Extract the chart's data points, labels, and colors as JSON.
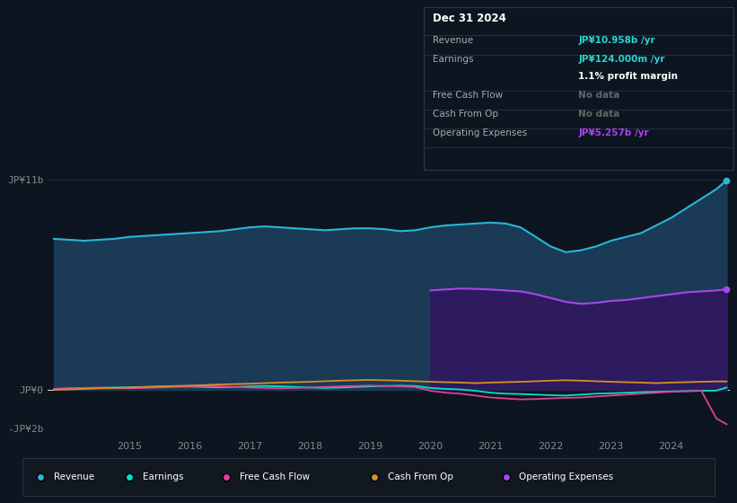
{
  "background_color": "#0d1520",
  "plot_bg_color": "#0d1520",
  "x_years": [
    2013.75,
    2014.0,
    2014.25,
    2014.5,
    2014.75,
    2015.0,
    2015.25,
    2015.5,
    2015.75,
    2016.0,
    2016.25,
    2016.5,
    2016.75,
    2017.0,
    2017.25,
    2017.5,
    2017.75,
    2018.0,
    2018.25,
    2018.5,
    2018.75,
    2019.0,
    2019.25,
    2019.5,
    2019.75,
    2020.0,
    2020.25,
    2020.5,
    2020.75,
    2021.0,
    2021.25,
    2021.5,
    2021.75,
    2022.0,
    2022.25,
    2022.5,
    2022.75,
    2023.0,
    2023.25,
    2023.5,
    2023.75,
    2024.0,
    2024.25,
    2024.5,
    2024.75,
    2024.92
  ],
  "revenue": [
    7.9,
    7.85,
    7.8,
    7.85,
    7.9,
    8.0,
    8.05,
    8.1,
    8.15,
    8.2,
    8.25,
    8.3,
    8.4,
    8.5,
    8.55,
    8.5,
    8.45,
    8.4,
    8.35,
    8.4,
    8.45,
    8.45,
    8.4,
    8.3,
    8.35,
    8.5,
    8.6,
    8.65,
    8.7,
    8.75,
    8.7,
    8.5,
    8.0,
    7.5,
    7.2,
    7.3,
    7.5,
    7.8,
    8.0,
    8.2,
    8.6,
    9.0,
    9.5,
    10.0,
    10.5,
    10.958
  ],
  "earnings": [
    0.05,
    0.07,
    0.08,
    0.1,
    0.12,
    0.13,
    0.15,
    0.17,
    0.18,
    0.17,
    0.15,
    0.13,
    0.15,
    0.18,
    0.2,
    0.18,
    0.15,
    0.12,
    0.1,
    0.12,
    0.15,
    0.18,
    0.2,
    0.22,
    0.2,
    0.1,
    0.05,
    0.02,
    -0.05,
    -0.15,
    -0.2,
    -0.22,
    -0.25,
    -0.28,
    -0.3,
    -0.25,
    -0.2,
    -0.18,
    -0.15,
    -0.12,
    -0.1,
    -0.08,
    -0.06,
    -0.05,
    -0.04,
    0.124
  ],
  "free_cash_flow": [
    0.05,
    0.08,
    0.1,
    0.12,
    0.1,
    0.08,
    0.1,
    0.12,
    0.15,
    0.18,
    0.2,
    0.18,
    0.15,
    0.12,
    0.1,
    0.08,
    0.1,
    0.12,
    0.15,
    0.18,
    0.2,
    0.22,
    0.2,
    0.18,
    0.15,
    -0.05,
    -0.15,
    -0.2,
    -0.3,
    -0.4,
    -0.45,
    -0.5,
    -0.48,
    -0.45,
    -0.42,
    -0.4,
    -0.35,
    -0.3,
    -0.25,
    -0.2,
    -0.15,
    -0.1,
    -0.08,
    -0.05,
    -1.5,
    -1.8
  ],
  "cash_from_op": [
    0.0,
    0.02,
    0.05,
    0.08,
    0.1,
    0.12,
    0.15,
    0.18,
    0.2,
    0.22,
    0.25,
    0.28,
    0.3,
    0.32,
    0.35,
    0.38,
    0.4,
    0.42,
    0.45,
    0.48,
    0.5,
    0.52,
    0.5,
    0.48,
    0.45,
    0.42,
    0.4,
    0.38,
    0.35,
    0.38,
    0.4,
    0.42,
    0.45,
    0.48,
    0.5,
    0.48,
    0.45,
    0.42,
    0.4,
    0.38,
    0.35,
    0.38,
    0.4,
    0.42,
    0.44,
    0.44
  ],
  "op_expenses_x": [
    2020.0,
    2020.25,
    2020.5,
    2020.75,
    2021.0,
    2021.25,
    2021.5,
    2021.75,
    2022.0,
    2022.25,
    2022.5,
    2022.75,
    2023.0,
    2023.25,
    2023.5,
    2023.75,
    2024.0,
    2024.25,
    2024.5,
    2024.75,
    2024.92
  ],
  "op_expenses": [
    5.2,
    5.25,
    5.3,
    5.28,
    5.25,
    5.2,
    5.15,
    5.0,
    4.8,
    4.6,
    4.5,
    4.55,
    4.65,
    4.7,
    4.8,
    4.9,
    5.0,
    5.1,
    5.15,
    5.2,
    5.257
  ],
  "ylim": [
    -2.5,
    12.5
  ],
  "revenue_color": "#29b6d8",
  "revenue_fill": "#1a3a55",
  "earnings_color": "#00e5c0",
  "free_cash_flow_color": "#e0409a",
  "cash_from_op_color": "#d4902a",
  "op_expenses_color": "#aa44ee",
  "op_expenses_fill": "#2e1a5e",
  "x_tick_positions": [
    2015,
    2016,
    2017,
    2018,
    2019,
    2020,
    2021,
    2022,
    2023,
    2024
  ],
  "x_tick_labels": [
    "2015",
    "2016",
    "2017",
    "2018",
    "2019",
    "2020",
    "2021",
    "2022",
    "2023",
    "2024"
  ],
  "ytick_positions": [
    0,
    11
  ],
  "ytick_labels": [
    "JP¥0",
    "JP¥11b"
  ],
  "ytick_neg_positions": [
    -2
  ],
  "ytick_neg_labels": [
    "-JP¥2b"
  ],
  "info_box": {
    "title": "Dec 31 2024",
    "rows": [
      {
        "label": "Revenue",
        "value": "JP¥10.958b /yr",
        "value_color": "#29d4d4"
      },
      {
        "label": "Earnings",
        "value": "JP¥124.000m /yr",
        "value_color": "#29d4d4",
        "sub": "1.1% profit margin"
      },
      {
        "label": "Free Cash Flow",
        "value": "No data",
        "value_color": "#666666"
      },
      {
        "label": "Cash From Op",
        "value": "No data",
        "value_color": "#666666"
      },
      {
        "label": "Operating Expenses",
        "value": "JP¥5.257b /yr",
        "value_color": "#aa44ee"
      }
    ]
  },
  "legend_items": [
    {
      "label": "Revenue",
      "color": "#29b6d8"
    },
    {
      "label": "Earnings",
      "color": "#00e5c0"
    },
    {
      "label": "Free Cash Flow",
      "color": "#e0409a"
    },
    {
      "label": "Cash From Op",
      "color": "#d4902a"
    },
    {
      "label": "Operating Expenses",
      "color": "#aa44ee"
    }
  ]
}
